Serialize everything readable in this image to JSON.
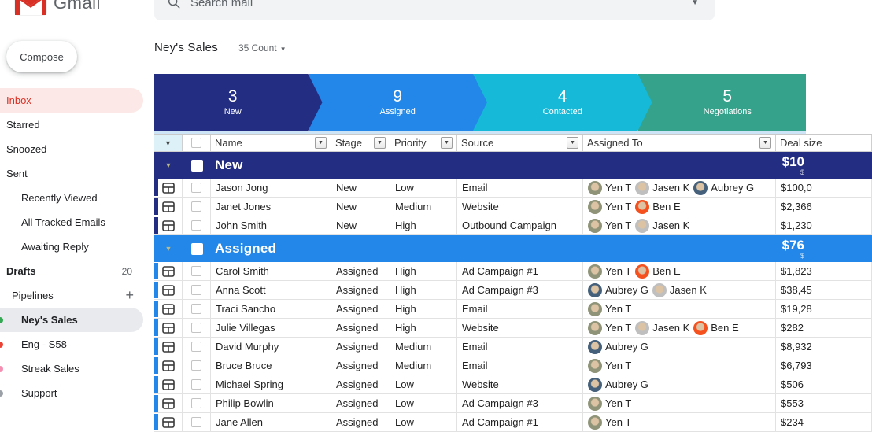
{
  "app": {
    "brand": "Gmail",
    "search": {
      "placeholder": "Search mail"
    }
  },
  "sidebar": {
    "compose_label": "Compose",
    "items": [
      {
        "id": "inbox",
        "label": "Inbox",
        "style": "active-red",
        "indent": 0
      },
      {
        "id": "starred",
        "label": "Starred",
        "indent": 0
      },
      {
        "id": "snoozed",
        "label": "Snoozed",
        "indent": 0
      },
      {
        "id": "sent",
        "label": "Sent",
        "indent": 0
      },
      {
        "id": "recently-viewed",
        "label": "Recently Viewed",
        "indent": 1
      },
      {
        "id": "all-tracked-emails",
        "label": "All Tracked Emails",
        "indent": 1
      },
      {
        "id": "awaiting-reply",
        "label": "Awaiting Reply",
        "indent": 1
      },
      {
        "id": "drafts",
        "label": "Drafts",
        "bold": true,
        "count": "20",
        "indent": 0
      },
      {
        "id": "pipelines",
        "label": "Pipelines",
        "indent": 0.5,
        "action": "+"
      },
      {
        "id": "neys-sales",
        "label": "Ney's Sales",
        "selected": true,
        "indent": 1,
        "dot": "#34a853"
      },
      {
        "id": "eng-s58",
        "label": "Eng - S58",
        "indent": 1,
        "dot": "#ea4335"
      },
      {
        "id": "streak-sales",
        "label": "Streak Sales",
        "indent": 1,
        "dot": "#f48fb1"
      },
      {
        "id": "support",
        "label": "Support",
        "indent": 1,
        "dot": "#9aa0a6"
      }
    ]
  },
  "pipeline": {
    "title": "Ney's Sales",
    "count_label": "35 Count",
    "stages": [
      {
        "name": "New",
        "count": "3",
        "color": "#232e83"
      },
      {
        "name": "Assigned",
        "count": "9",
        "color": "#2287e8"
      },
      {
        "name": "Contacted",
        "count": "4",
        "color": "#16b9d8"
      },
      {
        "name": "Negotiations",
        "count": "5",
        "color": "#35a28b"
      }
    ]
  },
  "people": {
    "Yen T": "#8f9478",
    "Jasen K": "#bfbfbf",
    "Aubrey G": "#44607a",
    "Ben E": "#f4511e"
  },
  "table": {
    "columns": [
      {
        "label": "Name",
        "menu": true
      },
      {
        "label": "Stage",
        "menu": true
      },
      {
        "label": "Priority",
        "menu": true
      },
      {
        "label": "Source",
        "menu": true
      },
      {
        "label": "Assigned To",
        "menu": true
      },
      {
        "label": "Deal size",
        "menu": false
      }
    ],
    "groups": [
      {
        "name": "New",
        "color": "#232e83",
        "total_main": "$10",
        "total_sub": "$",
        "rows": [
          {
            "name": "Jason Jong",
            "stage": "New",
            "priority": "Low",
            "source": "Email",
            "assignees": [
              "Yen T",
              "Jasen K",
              "Aubrey G"
            ],
            "deal": "$100,0"
          },
          {
            "name": "Janet Jones",
            "stage": "New",
            "priority": "Medium",
            "source": "Website",
            "assignees": [
              "Yen T",
              "Ben E"
            ],
            "deal": "$2,366"
          },
          {
            "name": "John Smith",
            "stage": "New",
            "priority": "High",
            "source": "Outbound Campaign",
            "assignees": [
              "Yen T",
              "Jasen K"
            ],
            "deal": "$1,230"
          }
        ]
      },
      {
        "name": "Assigned",
        "color": "#2287e8",
        "total_main": "$76",
        "total_sub": "$",
        "rows": [
          {
            "name": "Carol Smith",
            "stage": "Assigned",
            "priority": "High",
            "source": "Ad Campaign #1",
            "assignees": [
              "Yen T",
              "Ben E"
            ],
            "deal": "$1,823"
          },
          {
            "name": "Anna Scott",
            "stage": "Assigned",
            "priority": "High",
            "source": "Ad Campaign #3",
            "assignees": [
              "Aubrey G",
              "Jasen K"
            ],
            "deal": "$38,45"
          },
          {
            "name": "Traci Sancho",
            "stage": "Assigned",
            "priority": "High",
            "source": "Email",
            "assignees": [
              "Yen T"
            ],
            "deal": "$19,28"
          },
          {
            "name": "Julie Villegas",
            "stage": "Assigned",
            "priority": "High",
            "source": "Website",
            "assignees": [
              "Yen T",
              "Jasen K",
              "Ben E"
            ],
            "deal": "$282"
          },
          {
            "name": "David Murphy",
            "stage": "Assigned",
            "priority": "Medium",
            "source": "Email",
            "assignees": [
              "Aubrey G"
            ],
            "deal": "$8,932"
          },
          {
            "name": "Bruce Bruce",
            "stage": "Assigned",
            "priority": "Medium",
            "source": "Email",
            "assignees": [
              "Yen T"
            ],
            "deal": "$6,793"
          },
          {
            "name": "Michael Spring",
            "stage": "Assigned",
            "priority": "Low",
            "source": "Website",
            "assignees": [
              "Aubrey G"
            ],
            "deal": "$506"
          },
          {
            "name": "Philip Bowlin",
            "stage": "Assigned",
            "priority": "Low",
            "source": "Ad Campaign #3",
            "assignees": [
              "Yen T"
            ],
            "deal": "$553"
          },
          {
            "name": "Jane Allen",
            "stage": "Assigned",
            "priority": "Low",
            "source": "Ad Campaign #1",
            "assignees": [
              "Yen T"
            ],
            "deal": "$234"
          }
        ]
      }
    ]
  }
}
